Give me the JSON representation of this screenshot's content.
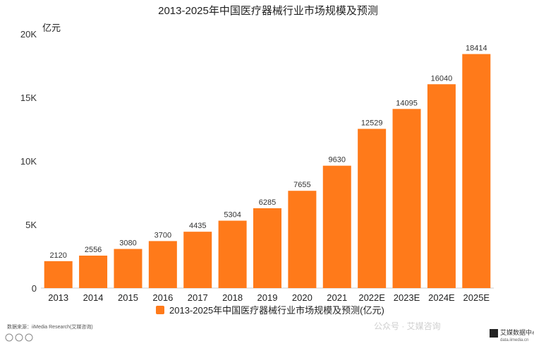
{
  "chart_data": {
    "type": "bar",
    "title": "2013-2025年中国医疗器械行业市场规模及预测",
    "unit_label": "亿元",
    "categories": [
      "2013",
      "2014",
      "2015",
      "2016",
      "2017",
      "2018",
      "2019",
      "2020",
      "2021",
      "2022E",
      "2023E",
      "2024E",
      "2025E"
    ],
    "values": [
      2120,
      2556,
      3080,
      3700,
      4435,
      5304,
      6285,
      7655,
      9630,
      12529,
      14095,
      16040,
      18414
    ],
    "value_labels": [
      "2120",
      "2556",
      "3080",
      "3700",
      "4435",
      "5304",
      "6285",
      "7655",
      "9630",
      "12529",
      "14095",
      "16040",
      "18414"
    ],
    "ylim": [
      0,
      20000
    ],
    "yticks": [
      0,
      5000,
      10000,
      15000,
      20000
    ],
    "ytick_labels": [
      "0",
      "5K",
      "10K",
      "15K",
      "20K"
    ],
    "grid": false,
    "legend": {
      "placement": "bottom-center",
      "label": "2013-2025年中国医疗器械行业市场规模及预测(亿元)"
    },
    "colors": {
      "bar": "#FF7A1A",
      "axis": "#cccccc"
    }
  },
  "footer": {
    "source": "数据来源：iiMedia Research(艾媒咨询)",
    "watermark_title": "艾媒数据中心",
    "watermark_url": "data.iimedia.cn",
    "faint_watermark": "公众号 · 艾媒咨询"
  }
}
